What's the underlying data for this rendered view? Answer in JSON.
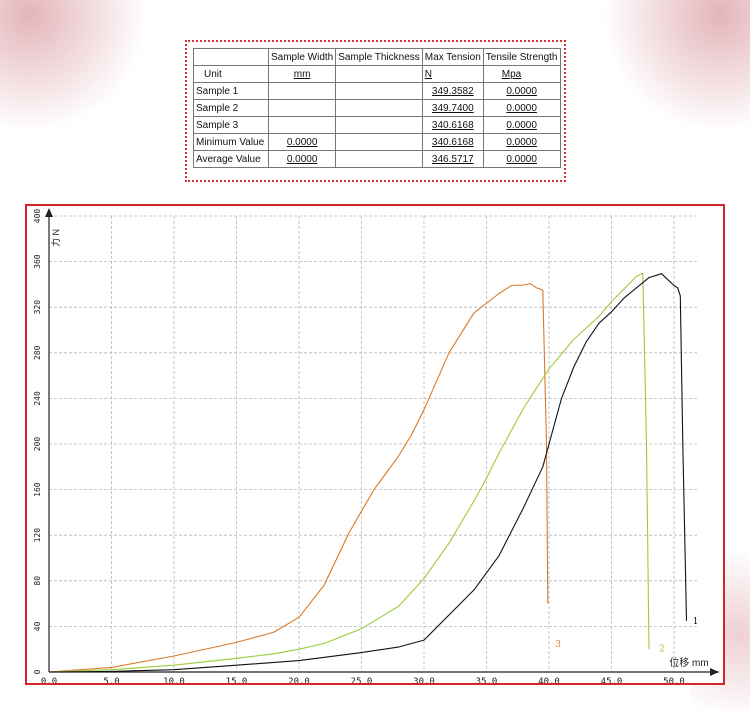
{
  "table": {
    "headers": [
      "",
      "Sample Width",
      "Sample Thickness",
      "Max Tension",
      "Tensile Strength"
    ],
    "rows": [
      [
        "Unit",
        "mm",
        "",
        "N",
        "Mpa"
      ],
      [
        "Sample 1",
        "",
        "",
        "349.3582",
        "0.0000"
      ],
      [
        "Sample 2",
        "",
        "",
        "349.7400",
        "0.0000"
      ],
      [
        "Sample 3",
        "",
        "",
        "340.6168",
        "0.0000"
      ],
      [
        "Minimum Value",
        "0.0000",
        "",
        "340.6168",
        "0.0000"
      ],
      [
        "Average Value",
        "0.0000",
        "",
        "346.5717",
        "0.0000"
      ]
    ]
  },
  "chart_data": {
    "type": "line",
    "ylabel": "力 N",
    "xlabel": "位移 mm",
    "xlim": [
      0,
      52
    ],
    "ylim": [
      0,
      400
    ],
    "xticks": [
      "0.0",
      "5.0",
      "10.0",
      "15.0",
      "20.0",
      "25.0",
      "30.0",
      "35.0",
      "40.0",
      "45.0",
      "50.0"
    ],
    "yticks": [
      "0",
      "40",
      "80",
      "120",
      "160",
      "200",
      "240",
      "280",
      "320",
      "360",
      "400"
    ],
    "grid": true,
    "colors": {
      "1": "#111111",
      "2": "#9ccc3a",
      "3": "#d97a2a",
      "grid": "#b8b8b8",
      "frame": "#d3262b",
      "table_border": "#d0343a"
    },
    "series": [
      {
        "name": "1",
        "x": [
          0,
          5,
          10,
          15,
          20,
          25,
          28,
          30,
          32,
          34,
          36,
          38,
          39.5,
          40,
          41,
          42,
          43,
          44,
          45,
          46,
          47,
          48,
          49,
          50,
          50.3,
          50.5,
          50.7,
          51
        ],
        "y": [
          0,
          0.5,
          2,
          6,
          10,
          17,
          22,
          28,
          50,
          72,
          102,
          145,
          180,
          200,
          240,
          268,
          290,
          306,
          316,
          328,
          337,
          346,
          349.4,
          339,
          337,
          330,
          200,
          45
        ]
      },
      {
        "name": "2",
        "x": [
          0,
          5,
          10,
          15,
          18,
          20,
          22,
          25,
          28,
          30,
          32,
          34,
          35,
          36,
          38,
          40,
          42,
          44,
          45,
          46,
          47,
          47.5,
          47.8,
          48
        ],
        "y": [
          0,
          2,
          6,
          12,
          16,
          20,
          25,
          38,
          58,
          82,
          113,
          150,
          170,
          192,
          232,
          266,
          292,
          312,
          325,
          336,
          347,
          349.7,
          200,
          20
        ]
      },
      {
        "name": "3",
        "x": [
          0,
          5,
          10,
          15,
          18,
          20,
          22,
          24,
          26,
          27,
          28,
          29,
          30,
          32,
          34,
          36,
          37,
          38,
          38.5,
          39,
          39.5,
          39.8,
          39.9
        ],
        "y": [
          0,
          4,
          14,
          26,
          35,
          48,
          76,
          122,
          160,
          175,
          190,
          208,
          230,
          280,
          315,
          332,
          339,
          339.5,
          340.6,
          337,
          335,
          200,
          60
        ]
      }
    ],
    "series_labels": [
      {
        "name": "1",
        "x": 51.5,
        "y": 42
      },
      {
        "name": "2",
        "x": 48.8,
        "y": 18
      },
      {
        "name": "3",
        "x": 40.5,
        "y": 22
      }
    ]
  }
}
